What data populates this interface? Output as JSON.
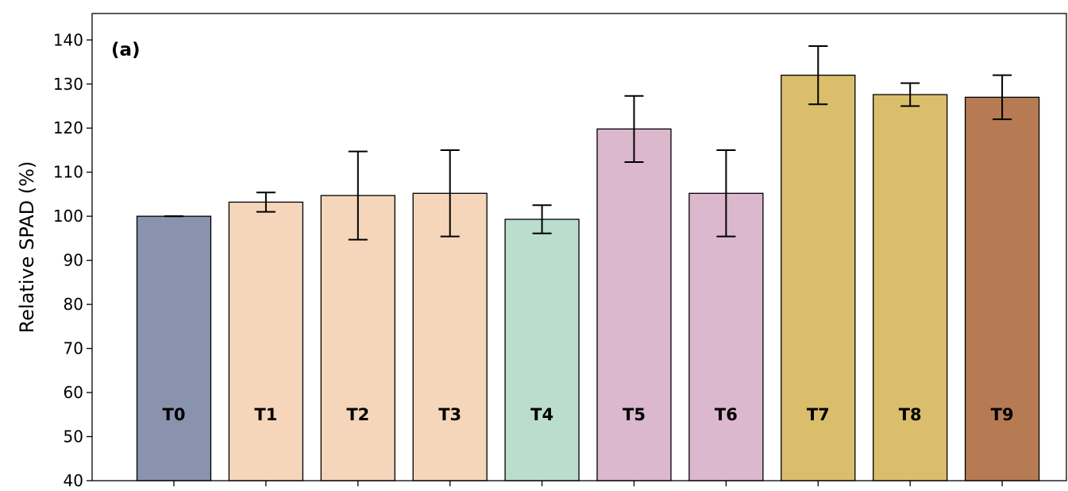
{
  "chart_data": {
    "type": "bar",
    "panel_label": "(a)",
    "title": "",
    "xlabel": "",
    "ylabel": "Relative SPAD (%)",
    "ylim": [
      40,
      146
    ],
    "yticks": [
      40,
      50,
      60,
      70,
      80,
      90,
      100,
      110,
      120,
      130,
      140
    ],
    "grid": false,
    "legend": "none",
    "categories": [
      "T0",
      "T1",
      "T2",
      "T3",
      "T4",
      "T5",
      "T6",
      "T7",
      "T8",
      "T9"
    ],
    "values": [
      100,
      103.2,
      104.7,
      105.2,
      99.3,
      119.8,
      105.2,
      132,
      127.6,
      127
    ],
    "errors": [
      0,
      2.2,
      10,
      9.8,
      3.2,
      7.5,
      9.8,
      6.6,
      2.6,
      5
    ],
    "colors": [
      "#8993ad",
      "#f5d6bb",
      "#f5d6bb",
      "#f5d6bb",
      "#bbddcd",
      "#dbb8cd",
      "#dbb8cd",
      "#dbbe6c",
      "#dbbe6c",
      "#b77b54"
    ]
  }
}
